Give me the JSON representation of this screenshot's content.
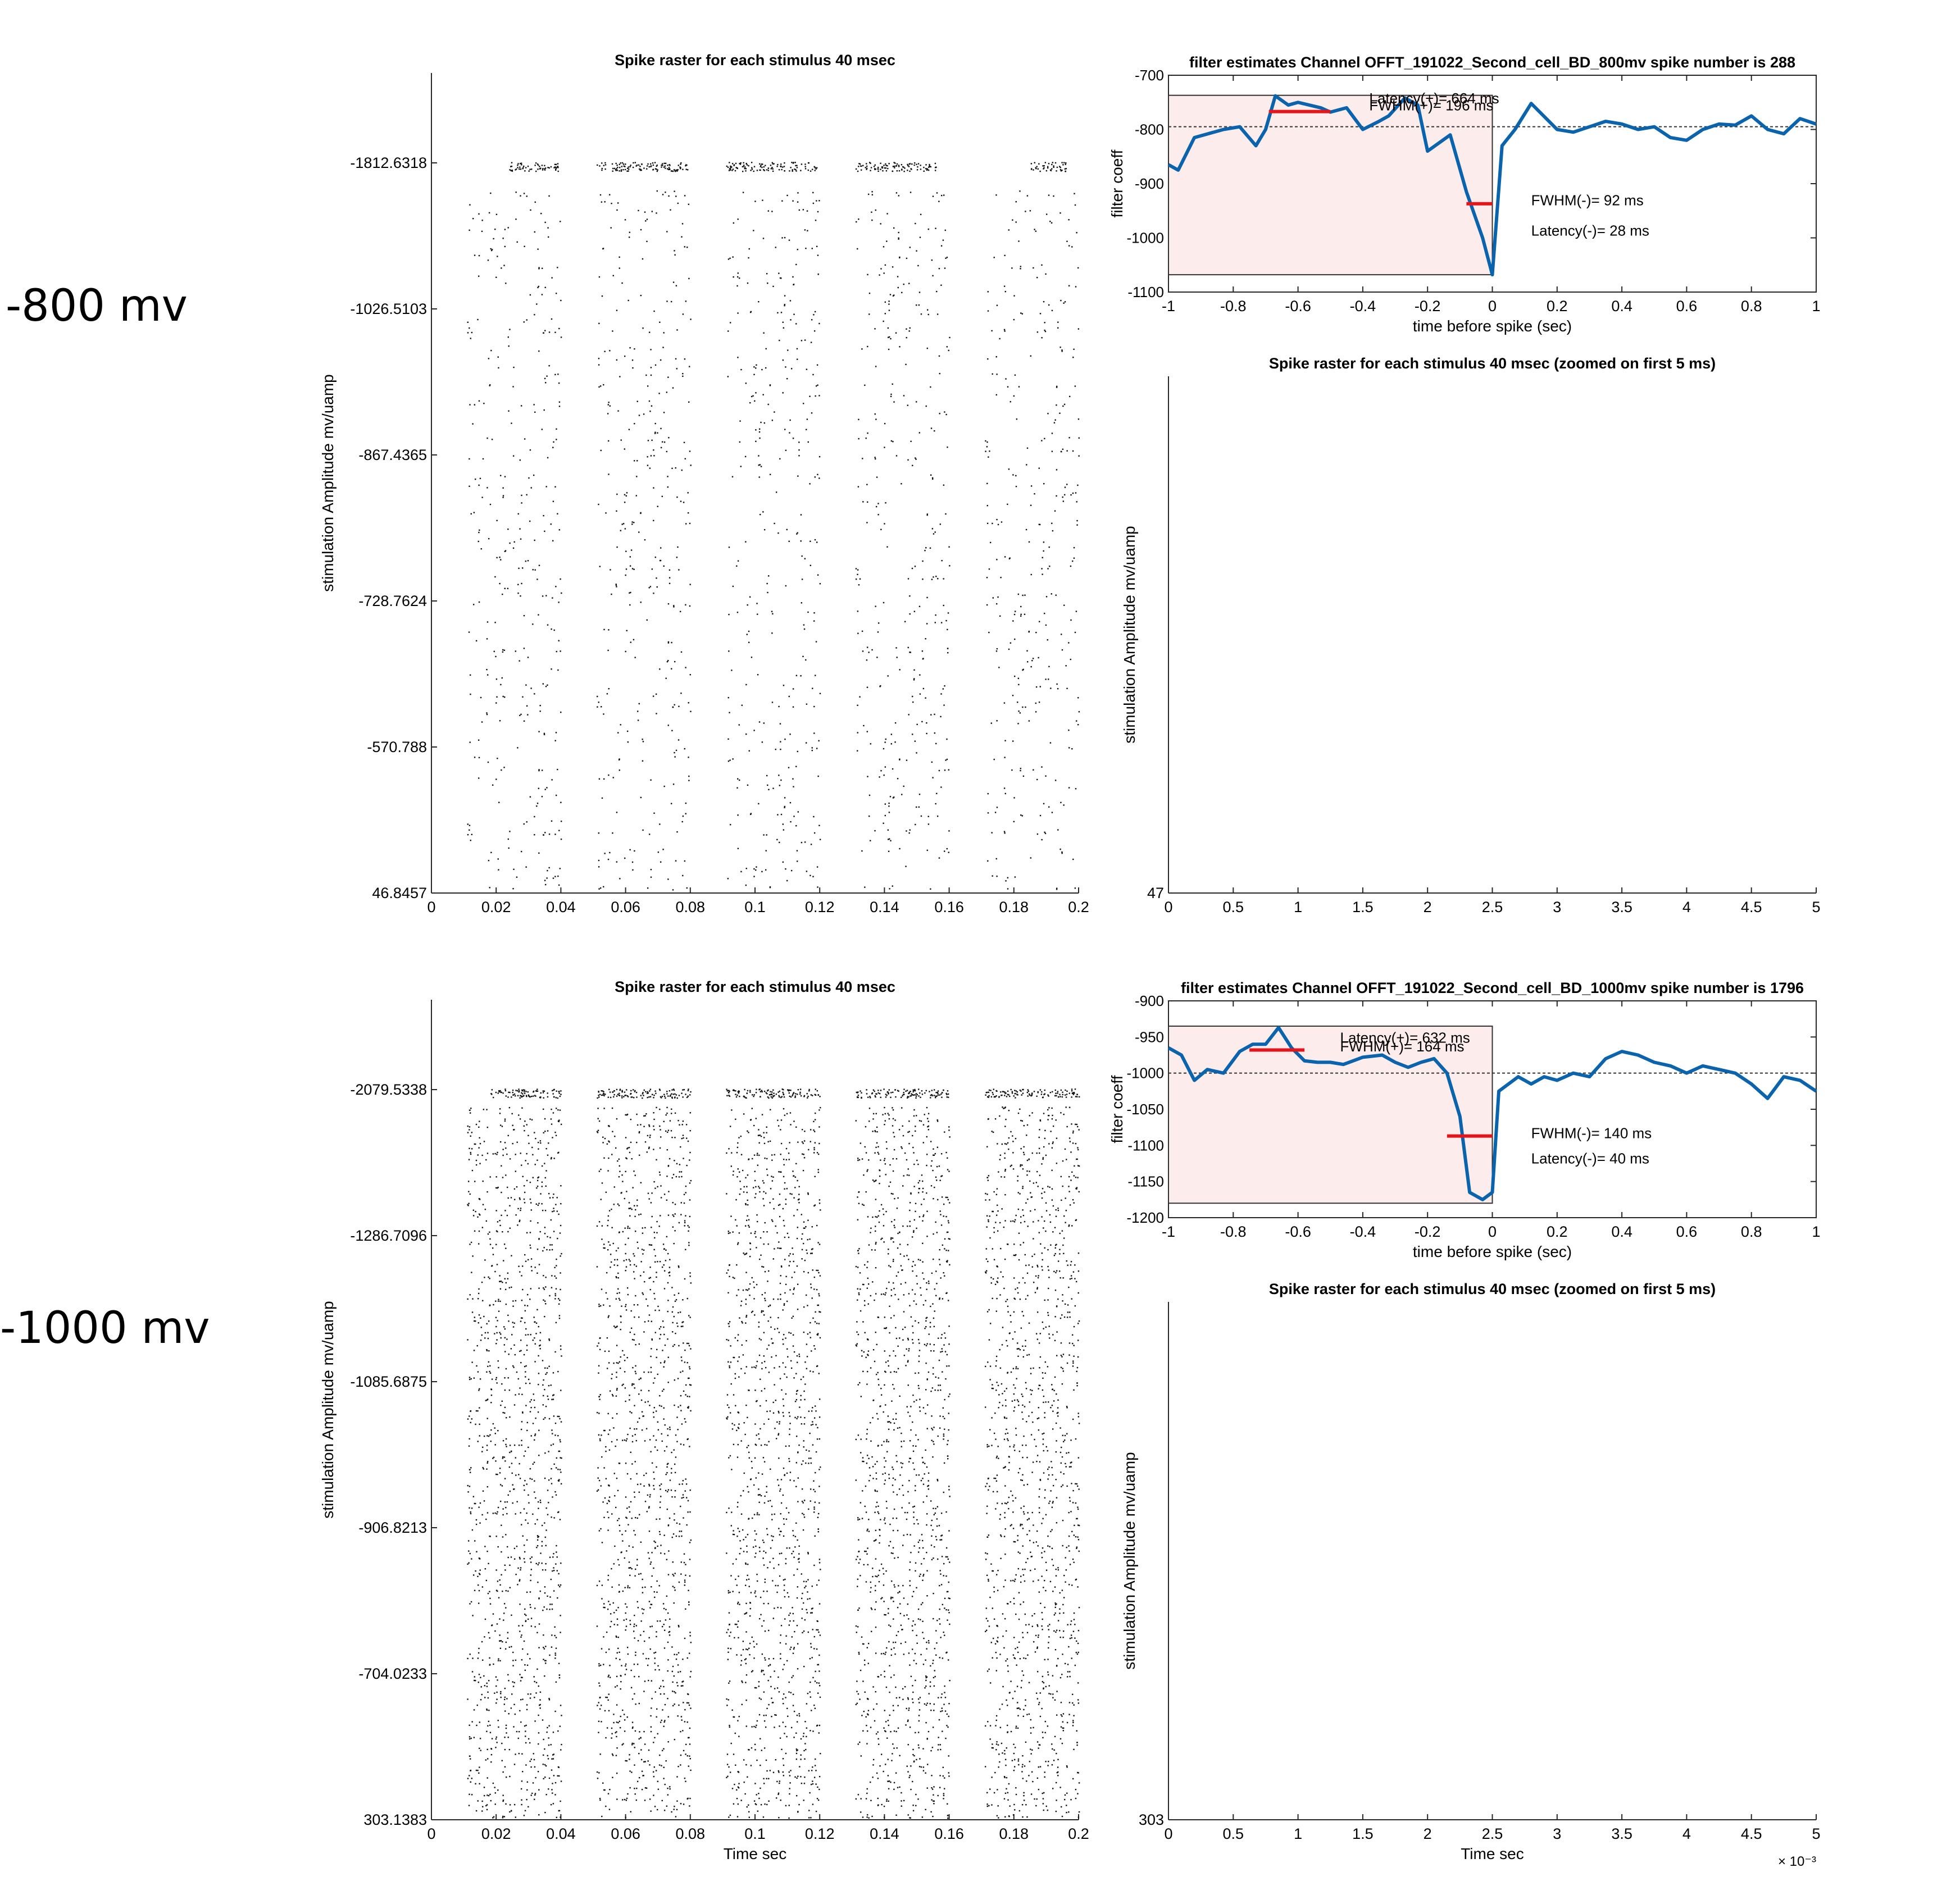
{
  "row_labels": [
    "-800 mv",
    "-1000 mv"
  ],
  "chart_data": [
    {
      "type": "scatter",
      "role": "raster",
      "title": "Spike raster for each stimulus 40 msec",
      "xlabel": "",
      "ylabel": "stimulation Amplitude  mv/uamp",
      "xlim": [
        0,
        0.2
      ],
      "xticks": [
        0,
        0.02,
        0.04,
        0.06,
        0.08,
        0.1,
        0.12,
        0.14,
        0.16,
        0.18,
        0.2
      ],
      "ytick_labels": [
        "-1812.6318",
        "-1026.5103",
        "-867.4365",
        "-728.7624",
        "-570.788",
        "46.8457"
      ],
      "raster": {
        "windows": [
          [
            0.011,
            0.04
          ],
          [
            0.051,
            0.08
          ],
          [
            0.091,
            0.12
          ],
          [
            0.131,
            0.16
          ],
          [
            0.171,
            0.2
          ]
        ],
        "rows": 80,
        "density": 0.17,
        "top_burst": [
          [
            0.024,
            0.039
          ],
          [
            0.051,
            0.079
          ],
          [
            0.091,
            0.119
          ],
          [
            0.131,
            0.156
          ],
          [
            0.185,
            0.196
          ]
        ]
      }
    },
    {
      "type": "line",
      "role": "filter",
      "title": "filter estimates  Channel  OFFT_191022_Second_cell_BD_800mv  spike number is 288",
      "xlabel": "time before spike (sec)",
      "ylabel": "filter coeff",
      "xlim": [
        -1,
        1
      ],
      "ylim": [
        -1100,
        -700
      ],
      "xticks": [
        -1,
        -0.8,
        -0.6,
        -0.4,
        -0.2,
        0,
        0.2,
        0.4,
        0.6,
        0.8,
        1
      ],
      "yticks": [
        -700,
        -800,
        -900,
        -1000,
        -1100
      ],
      "x": [
        -1,
        -0.97,
        -0.92,
        -0.83,
        -0.78,
        -0.73,
        -0.7,
        -0.67,
        -0.63,
        -0.6,
        -0.53,
        -0.5,
        -0.45,
        -0.4,
        -0.35,
        -0.32,
        -0.27,
        -0.23,
        -0.2,
        -0.13,
        -0.08,
        -0.03,
        0,
        0.03,
        0.07,
        0.12,
        0.2,
        0.25,
        0.3,
        0.35,
        0.4,
        0.45,
        0.5,
        0.55,
        0.6,
        0.65,
        0.7,
        0.75,
        0.8,
        0.85,
        0.9,
        0.95,
        1
      ],
      "y": [
        -865,
        -875,
        -815,
        -800,
        -795,
        -830,
        -800,
        -738,
        -755,
        -750,
        -760,
        -768,
        -760,
        -800,
        -785,
        -775,
        -742,
        -755,
        -840,
        -810,
        -915,
        -1000,
        -1068,
        -830,
        -800,
        -752,
        -800,
        -805,
        -795,
        -785,
        -790,
        -800,
        -795,
        -815,
        -820,
        -800,
        -790,
        -792,
        -775,
        -800,
        -808,
        -780,
        -790
      ],
      "baseline": -795,
      "box": {
        "x": [
          -1,
          0
        ],
        "y": [
          -1068,
          -737
        ]
      },
      "fwhm_pos_bar": {
        "x": [
          -0.69,
          -0.5
        ],
        "y": -767
      },
      "fwhm_neg_bar": {
        "x": [
          -0.08,
          0
        ],
        "y": -937
      },
      "annotations": [
        {
          "text": "Latency(+)= 664 ms",
          "x": -0.38,
          "y": -752
        },
        {
          "text": "FWHM(+)= 196 ms",
          "x": -0.38,
          "y": -765
        },
        {
          "text": "FWHM(-)= 92 ms",
          "x": 0.12,
          "y": -940
        },
        {
          "text": "Latency(-)= 28 ms",
          "x": 0.12,
          "y": -996
        }
      ]
    },
    {
      "type": "scatter",
      "role": "empty",
      "title": "Spike raster for each stimulus 40 msec (zoomed on first 5 ms)",
      "xlabel": "",
      "ylabel": "stimulation Amplitude  mv/uamp",
      "xlim": [
        0,
        5
      ],
      "xticks": [
        0,
        0.5,
        1,
        1.5,
        2,
        2.5,
        3,
        3.5,
        4,
        4.5,
        5
      ],
      "ytick_labels": [
        "47"
      ],
      "xexponent": ""
    },
    {
      "type": "scatter",
      "role": "raster",
      "title": "Spike raster for each stimulus 40 msec",
      "xlabel": "Time sec",
      "ylabel": "stimulation Amplitude  mv/uamp",
      "xlim": [
        0,
        0.2
      ],
      "xticks": [
        0,
        0.02,
        0.04,
        0.06,
        0.08,
        0.1,
        0.12,
        0.14,
        0.16,
        0.18,
        0.2
      ],
      "ytick_labels": [
        "-2079.5338",
        "-1286.7096",
        "-1085.6875",
        "-906.8213",
        "-704.0233",
        "303.1383"
      ],
      "raster": {
        "windows": [
          [
            0.011,
            0.04
          ],
          [
            0.051,
            0.08
          ],
          [
            0.091,
            0.12
          ],
          [
            0.131,
            0.16
          ],
          [
            0.171,
            0.2
          ]
        ],
        "rows": 130,
        "density": 0.42,
        "top_burst": [
          [
            0.018,
            0.04
          ],
          [
            0.051,
            0.08
          ],
          [
            0.091,
            0.12
          ],
          [
            0.131,
            0.16
          ],
          [
            0.171,
            0.2
          ]
        ]
      }
    },
    {
      "type": "line",
      "role": "filter",
      "title": "filter estimates  Channel  OFFT_191022_Second_cell_BD_1000mv  spike number is 1796",
      "xlabel": "time before spike (sec)",
      "ylabel": "filter coeff",
      "xlim": [
        -1,
        1
      ],
      "ylim": [
        -1200,
        -900
      ],
      "xticks": [
        -1,
        -0.8,
        -0.6,
        -0.4,
        -0.2,
        0,
        0.2,
        0.4,
        0.6,
        0.8,
        1
      ],
      "yticks": [
        -900,
        -950,
        -1000,
        -1050,
        -1100,
        -1150,
        -1200
      ],
      "x": [
        -1,
        -0.96,
        -0.92,
        -0.88,
        -0.83,
        -0.78,
        -0.74,
        -0.7,
        -0.66,
        -0.62,
        -0.58,
        -0.54,
        -0.5,
        -0.46,
        -0.4,
        -0.34,
        -0.3,
        -0.26,
        -0.22,
        -0.18,
        -0.14,
        -0.1,
        -0.07,
        -0.03,
        0,
        0.02,
        0.08,
        0.12,
        0.16,
        0.2,
        0.25,
        0.3,
        0.35,
        0.4,
        0.45,
        0.5,
        0.55,
        0.6,
        0.65,
        0.7,
        0.75,
        0.8,
        0.85,
        0.9,
        0.95,
        1
      ],
      "y": [
        -965,
        -975,
        -1010,
        -995,
        -1000,
        -970,
        -960,
        -960,
        -937,
        -965,
        -983,
        -985,
        -985,
        -988,
        -978,
        -975,
        -985,
        -992,
        -985,
        -980,
        -1000,
        -1060,
        -1165,
        -1175,
        -1165,
        -1025,
        -1005,
        -1015,
        -1005,
        -1010,
        -1000,
        -1005,
        -980,
        -970,
        -975,
        -985,
        -990,
        -1000,
        -990,
        -995,
        -1000,
        -1015,
        -1035,
        -1005,
        -1010,
        -1025
      ],
      "baseline": -1000,
      "box": {
        "x": [
          -1,
          0
        ],
        "y": [
          -1180,
          -935
        ]
      },
      "fwhm_pos_bar": {
        "x": [
          -0.75,
          -0.58
        ],
        "y": -968
      },
      "fwhm_neg_bar": {
        "x": [
          -0.14,
          0
        ],
        "y": -1087
      },
      "annotations": [
        {
          "text": "Latency(+)= 632 ms",
          "x": -0.47,
          "y": -958
        },
        {
          "text": "FWHM(+)= 164 ms",
          "x": -0.47,
          "y": -970
        },
        {
          "text": "FWHM(-)= 140 ms",
          "x": 0.12,
          "y": -1090
        },
        {
          "text": "Latency(-)= 40 ms",
          "x": 0.12,
          "y": -1125
        }
      ]
    },
    {
      "type": "scatter",
      "role": "empty",
      "title": "Spike raster for each stimulus 40 msec (zoomed on first 5 ms)",
      "xlabel": "Time sec",
      "ylabel": "stimulation Amplitude  mv/uamp",
      "xlim": [
        0,
        5
      ],
      "xticks": [
        0,
        0.5,
        1,
        1.5,
        2,
        2.5,
        3,
        3.5,
        4,
        4.5,
        5
      ],
      "ytick_labels": [
        "303"
      ],
      "xexponent": "× 10⁻³"
    }
  ]
}
